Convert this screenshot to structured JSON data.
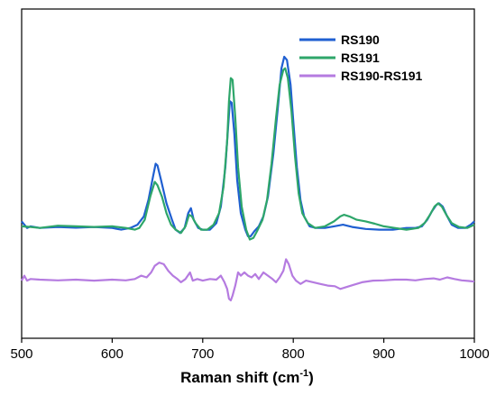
{
  "chart_data": {
    "type": "line",
    "title": "",
    "xlabel": "Raman shift (cm",
    "xlabel_sup": "-1",
    "xlabel_close": ")",
    "ylabel": "",
    "xlim": [
      500,
      1000
    ],
    "ylim": [
      0,
      1
    ],
    "y_ticks_shown": false,
    "grid": false,
    "legend_position": "top-right",
    "x_ticks": [
      500,
      600,
      700,
      800,
      900,
      1000
    ],
    "x_tick_labels": [
      "500",
      "600",
      "700",
      "800",
      "900",
      "1000"
    ],
    "series": [
      {
        "name": "RS190",
        "color": "#1f5fd1",
        "points": [
          [
            500,
            0.355
          ],
          [
            503,
            0.345
          ],
          [
            506,
            0.335
          ],
          [
            510,
            0.34
          ],
          [
            520,
            0.335
          ],
          [
            540,
            0.338
          ],
          [
            560,
            0.336
          ],
          [
            580,
            0.338
          ],
          [
            600,
            0.335
          ],
          [
            610,
            0.33
          ],
          [
            620,
            0.335
          ],
          [
            628,
            0.345
          ],
          [
            635,
            0.37
          ],
          [
            640,
            0.42
          ],
          [
            645,
            0.49
          ],
          [
            648,
            0.53
          ],
          [
            650,
            0.525
          ],
          [
            654,
            0.48
          ],
          [
            660,
            0.41
          ],
          [
            666,
            0.36
          ],
          [
            670,
            0.33
          ],
          [
            675,
            0.32
          ],
          [
            680,
            0.335
          ],
          [
            684,
            0.38
          ],
          [
            687,
            0.395
          ],
          [
            690,
            0.36
          ],
          [
            695,
            0.335
          ],
          [
            700,
            0.33
          ],
          [
            708,
            0.33
          ],
          [
            715,
            0.35
          ],
          [
            720,
            0.4
          ],
          [
            725,
            0.52
          ],
          [
            728,
            0.64
          ],
          [
            730,
            0.72
          ],
          [
            732,
            0.715
          ],
          [
            735,
            0.62
          ],
          [
            738,
            0.48
          ],
          [
            742,
            0.38
          ],
          [
            747,
            0.33
          ],
          [
            750,
            0.31
          ],
          [
            753,
            0.31
          ],
          [
            757,
            0.325
          ],
          [
            762,
            0.34
          ],
          [
            767,
            0.37
          ],
          [
            772,
            0.43
          ],
          [
            778,
            0.56
          ],
          [
            783,
            0.7
          ],
          [
            787,
            0.82
          ],
          [
            790,
            0.855
          ],
          [
            793,
            0.845
          ],
          [
            797,
            0.77
          ],
          [
            800,
            0.66
          ],
          [
            804,
            0.52
          ],
          [
            808,
            0.42
          ],
          [
            812,
            0.37
          ],
          [
            818,
            0.34
          ],
          [
            825,
            0.335
          ],
          [
            835,
            0.335
          ],
          [
            845,
            0.34
          ],
          [
            855,
            0.345
          ],
          [
            865,
            0.338
          ],
          [
            880,
            0.332
          ],
          [
            895,
            0.33
          ],
          [
            910,
            0.33
          ],
          [
            925,
            0.335
          ],
          [
            935,
            0.335
          ],
          [
            942,
            0.34
          ],
          [
            948,
            0.36
          ],
          [
            953,
            0.385
          ],
          [
            958,
            0.405
          ],
          [
            961,
            0.41
          ],
          [
            965,
            0.4
          ],
          [
            970,
            0.37
          ],
          [
            975,
            0.345
          ],
          [
            982,
            0.335
          ],
          [
            990,
            0.335
          ],
          [
            996,
            0.345
          ],
          [
            1000,
            0.355
          ]
        ]
      },
      {
        "name": "RS191",
        "color": "#2ea66a",
        "points": [
          [
            500,
            0.34
          ],
          [
            510,
            0.338
          ],
          [
            520,
            0.335
          ],
          [
            540,
            0.342
          ],
          [
            560,
            0.34
          ],
          [
            580,
            0.338
          ],
          [
            600,
            0.34
          ],
          [
            615,
            0.335
          ],
          [
            625,
            0.33
          ],
          [
            630,
            0.335
          ],
          [
            636,
            0.36
          ],
          [
            642,
            0.43
          ],
          [
            647,
            0.475
          ],
          [
            650,
            0.465
          ],
          [
            655,
            0.43
          ],
          [
            660,
            0.38
          ],
          [
            665,
            0.345
          ],
          [
            670,
            0.33
          ],
          [
            676,
            0.32
          ],
          [
            681,
            0.34
          ],
          [
            685,
            0.375
          ],
          [
            688,
            0.37
          ],
          [
            692,
            0.35
          ],
          [
            698,
            0.33
          ],
          [
            705,
            0.33
          ],
          [
            712,
            0.345
          ],
          [
            718,
            0.38
          ],
          [
            723,
            0.46
          ],
          [
            727,
            0.6
          ],
          [
            729,
            0.72
          ],
          [
            731,
            0.79
          ],
          [
            733,
            0.785
          ],
          [
            736,
            0.67
          ],
          [
            739,
            0.52
          ],
          [
            743,
            0.4
          ],
          [
            748,
            0.33
          ],
          [
            752,
            0.3
          ],
          [
            756,
            0.305
          ],
          [
            760,
            0.325
          ],
          [
            766,
            0.36
          ],
          [
            771,
            0.42
          ],
          [
            776,
            0.53
          ],
          [
            781,
            0.67
          ],
          [
            785,
            0.77
          ],
          [
            789,
            0.815
          ],
          [
            791,
            0.82
          ],
          [
            794,
            0.79
          ],
          [
            798,
            0.69
          ],
          [
            802,
            0.55
          ],
          [
            806,
            0.44
          ],
          [
            810,
            0.38
          ],
          [
            816,
            0.35
          ],
          [
            824,
            0.335
          ],
          [
            835,
            0.34
          ],
          [
            845,
            0.355
          ],
          [
            852,
            0.37
          ],
          [
            856,
            0.375
          ],
          [
            862,
            0.37
          ],
          [
            870,
            0.36
          ],
          [
            880,
            0.355
          ],
          [
            890,
            0.348
          ],
          [
            900,
            0.34
          ],
          [
            912,
            0.335
          ],
          [
            925,
            0.33
          ],
          [
            938,
            0.335
          ],
          [
            945,
            0.35
          ],
          [
            951,
            0.375
          ],
          [
            956,
            0.4
          ],
          [
            960,
            0.41
          ],
          [
            964,
            0.4
          ],
          [
            969,
            0.375
          ],
          [
            975,
            0.35
          ],
          [
            983,
            0.338
          ],
          [
            992,
            0.335
          ],
          [
            1000,
            0.345
          ]
        ]
      },
      {
        "name": "RS190-RS191",
        "color": "#b57be0",
        "points": [
          [
            500,
            0.175
          ],
          [
            503,
            0.19
          ],
          [
            506,
            0.175
          ],
          [
            510,
            0.18
          ],
          [
            520,
            0.178
          ],
          [
            540,
            0.176
          ],
          [
            560,
            0.178
          ],
          [
            580,
            0.175
          ],
          [
            600,
            0.178
          ],
          [
            615,
            0.176
          ],
          [
            625,
            0.18
          ],
          [
            632,
            0.19
          ],
          [
            638,
            0.185
          ],
          [
            643,
            0.2
          ],
          [
            647,
            0.22
          ],
          [
            652,
            0.23
          ],
          [
            657,
            0.225
          ],
          [
            662,
            0.205
          ],
          [
            667,
            0.19
          ],
          [
            672,
            0.18
          ],
          [
            676,
            0.17
          ],
          [
            681,
            0.18
          ],
          [
            686,
            0.2
          ],
          [
            689,
            0.175
          ],
          [
            694,
            0.18
          ],
          [
            700,
            0.175
          ],
          [
            708,
            0.18
          ],
          [
            715,
            0.178
          ],
          [
            720,
            0.19
          ],
          [
            724,
            0.17
          ],
          [
            727,
            0.15
          ],
          [
            729,
            0.12
          ],
          [
            731,
            0.115
          ],
          [
            733,
            0.13
          ],
          [
            736,
            0.16
          ],
          [
            739,
            0.2
          ],
          [
            742,
            0.19
          ],
          [
            746,
            0.2
          ],
          [
            750,
            0.19
          ],
          [
            754,
            0.185
          ],
          [
            758,
            0.195
          ],
          [
            762,
            0.18
          ],
          [
            767,
            0.2
          ],
          [
            772,
            0.19
          ],
          [
            777,
            0.18
          ],
          [
            781,
            0.17
          ],
          [
            785,
            0.185
          ],
          [
            789,
            0.205
          ],
          [
            792,
            0.24
          ],
          [
            795,
            0.225
          ],
          [
            799,
            0.19
          ],
          [
            803,
            0.175
          ],
          [
            808,
            0.165
          ],
          [
            814,
            0.175
          ],
          [
            822,
            0.17
          ],
          [
            830,
            0.165
          ],
          [
            838,
            0.16
          ],
          [
            846,
            0.158
          ],
          [
            852,
            0.15
          ],
          [
            858,
            0.155
          ],
          [
            866,
            0.162
          ],
          [
            876,
            0.17
          ],
          [
            888,
            0.175
          ],
          [
            900,
            0.176
          ],
          [
            912,
            0.178
          ],
          [
            925,
            0.178
          ],
          [
            935,
            0.176
          ],
          [
            945,
            0.18
          ],
          [
            955,
            0.182
          ],
          [
            962,
            0.178
          ],
          [
            970,
            0.185
          ],
          [
            978,
            0.18
          ],
          [
            986,
            0.176
          ],
          [
            994,
            0.174
          ],
          [
            1000,
            0.172
          ]
        ]
      }
    ]
  }
}
